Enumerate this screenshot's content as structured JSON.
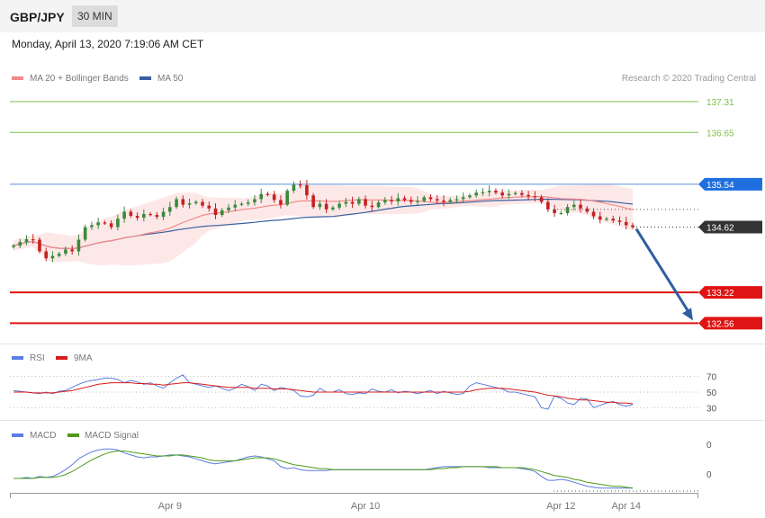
{
  "header": {
    "pair": "GBP/JPY",
    "timeframe": "30 MIN",
    "datetime": "Monday, April 13, 2020 7:19:06 AM CET"
  },
  "colors": {
    "ma20": "#f28a8a",
    "ma50": "#3a5f9f",
    "band": "#fde4e4",
    "bull": "#3a8a3a",
    "bear": "#c62020",
    "target_green": "#7fbf4a",
    "resistance_blue": "#5b8ed6",
    "label_blue": "#1f6fe0",
    "support_red": "#e01414",
    "current_label": "#333333",
    "arrow": "#2f5fa0",
    "rsi": "#5a7de0",
    "rsi_ma": "#d81b1b",
    "macd": "#5a7de0",
    "macd_signal": "#4f9a1a"
  },
  "chart_data": [
    {
      "type": "candlestick",
      "panel": "price",
      "legend": [
        {
          "name": "MA 20 + Bollinger Bands",
          "color": "#f28a8a"
        },
        {
          "name": "MA 50",
          "color": "#3a5f9f"
        }
      ],
      "credit": "Research © 2020 Trading Central",
      "ylim": [
        132.2,
        137.6
      ],
      "levels": [
        {
          "value": 137.31,
          "label": "137.31",
          "kind": "target"
        },
        {
          "value": 136.65,
          "label": "136.65",
          "kind": "target"
        },
        {
          "value": 135.54,
          "label": "135.54",
          "kind": "resistance"
        },
        {
          "value": 134.62,
          "label": "134.62",
          "kind": "current"
        },
        {
          "value": 133.22,
          "label": "133.22",
          "kind": "support"
        },
        {
          "value": 132.56,
          "label": "132.56",
          "kind": "support"
        }
      ],
      "forecast_arrow": {
        "from": 134.62,
        "to": 132.56
      },
      "xticks": [
        {
          "label": "Apr 9",
          "index": 24
        },
        {
          "label": "Apr 10",
          "index": 54
        },
        {
          "label": "Apr 12",
          "index": 84
        },
        {
          "label": "Apr 14",
          "index": 94
        }
      ],
      "closes": [
        134.22,
        134.3,
        134.36,
        134.35,
        134.1,
        133.95,
        134.0,
        134.05,
        134.14,
        134.1,
        134.35,
        134.62,
        134.66,
        134.72,
        134.7,
        134.62,
        134.8,
        134.95,
        134.86,
        134.82,
        134.9,
        134.88,
        134.84,
        134.95,
        135.05,
        135.22,
        135.1,
        135.13,
        135.16,
        135.08,
        135.02,
        134.88,
        134.98,
        135.04,
        135.1,
        135.12,
        135.15,
        135.22,
        135.33,
        135.32,
        135.2,
        135.1,
        135.4,
        135.53,
        135.52,
        135.3,
        135.05,
        135.12,
        135.0,
        135.04,
        135.12,
        135.16,
        135.12,
        135.22,
        135.08,
        135.05,
        135.15,
        135.2,
        135.17,
        135.24,
        135.2,
        135.16,
        135.18,
        135.26,
        135.22,
        135.19,
        135.16,
        135.2,
        135.22,
        135.26,
        135.3,
        135.36,
        135.37,
        135.4,
        135.36,
        135.3,
        135.33,
        135.35,
        135.31,
        135.28,
        135.26,
        135.16,
        135.0,
        134.92,
        134.92,
        135.05,
        135.1,
        135.02,
        134.95,
        134.85,
        134.78,
        134.8,
        134.76,
        134.73,
        134.66,
        134.62
      ]
    },
    {
      "type": "line",
      "panel": "rsi",
      "legend": [
        {
          "name": "RSI",
          "color": "#5a7de0"
        },
        {
          "name": "9MA",
          "color": "#d81b1b"
        }
      ],
      "levels": [
        70,
        50,
        30
      ],
      "level_labels": [
        "70",
        "50",
        "30"
      ],
      "ylim": [
        20,
        80
      ],
      "series": [
        {
          "name": "RSI",
          "values": [
            52,
            51,
            50,
            49,
            48,
            50,
            48,
            51,
            52,
            56,
            60,
            63,
            65,
            66,
            68,
            68,
            66,
            62,
            65,
            63,
            60,
            62,
            58,
            55,
            62,
            68,
            72,
            62,
            60,
            58,
            56,
            58,
            55,
            52,
            55,
            60,
            57,
            52,
            60,
            58,
            52,
            56,
            54,
            52,
            45,
            44,
            46,
            55,
            50,
            50,
            53,
            48,
            47,
            49,
            48,
            54,
            51,
            50,
            53,
            49,
            51,
            50,
            48,
            50,
            52,
            48,
            51,
            49,
            47,
            48,
            58,
            62,
            60,
            58,
            56,
            54,
            50,
            50,
            48,
            46,
            44,
            30,
            28,
            45,
            42,
            36,
            34,
            42,
            41,
            30,
            33,
            36,
            38,
            34,
            32,
            34
          ]
        },
        {
          "name": "9MA",
          "values": [
            50,
            50,
            50,
            49,
            49,
            49,
            49,
            50,
            51,
            52,
            54,
            56,
            58,
            60,
            61,
            62,
            62,
            62,
            62,
            61,
            61,
            60,
            60,
            59,
            60,
            61,
            62,
            62,
            61,
            60,
            59,
            58,
            57,
            56,
            56,
            56,
            56,
            55,
            55,
            55,
            54,
            54,
            54,
            53,
            52,
            51,
            50,
            50,
            50,
            50,
            50,
            50,
            50,
            50,
            50,
            50,
            50,
            50,
            50,
            50,
            50,
            50,
            50,
            50,
            50,
            50,
            50,
            50,
            50,
            50,
            51,
            53,
            54,
            55,
            55,
            55,
            54,
            53,
            52,
            51,
            50,
            48,
            46,
            45,
            44,
            42,
            41,
            40,
            40,
            39,
            38,
            37,
            37,
            36,
            36,
            35
          ]
        }
      ]
    },
    {
      "type": "line",
      "panel": "macd",
      "legend": [
        {
          "name": "MACD",
          "color": "#5a7de0"
        },
        {
          "name": "MACD Signal",
          "color": "#4f9a1a"
        }
      ],
      "level_labels": [
        "0",
        "0"
      ],
      "series": [
        {
          "name": "MACD",
          "values": [
            -0.02,
            -0.02,
            -0.01,
            -0.02,
            0.0,
            -0.01,
            0.0,
            0.03,
            0.07,
            0.12,
            0.18,
            0.22,
            0.25,
            0.27,
            0.28,
            0.28,
            0.27,
            0.24,
            0.22,
            0.2,
            0.19,
            0.2,
            0.2,
            0.21,
            0.22,
            0.22,
            0.21,
            0.2,
            0.18,
            0.16,
            0.14,
            0.13,
            0.14,
            0.15,
            0.16,
            0.18,
            0.2,
            0.21,
            0.2,
            0.18,
            0.16,
            0.1,
            0.08,
            0.09,
            0.07,
            0.06,
            0.06,
            0.06,
            0.06,
            0.07,
            0.07,
            0.07,
            0.07,
            0.07,
            0.07,
            0.07,
            0.07,
            0.07,
            0.07,
            0.07,
            0.07,
            0.07,
            0.07,
            0.07,
            0.08,
            0.09,
            0.1,
            0.1,
            0.1,
            0.1,
            0.1,
            0.1,
            0.1,
            0.09,
            0.09,
            0.09,
            0.09,
            0.09,
            0.08,
            0.07,
            0.05,
            0.0,
            -0.04,
            -0.04,
            -0.03,
            -0.04,
            -0.06,
            -0.08,
            -0.1,
            -0.11,
            -0.12,
            -0.12,
            -0.12,
            -0.12,
            -0.12,
            -0.12
          ]
        },
        {
          "name": "MACD Signal",
          "values": [
            -0.02,
            -0.02,
            -0.02,
            -0.02,
            -0.01,
            -0.01,
            -0.01,
            0.0,
            0.02,
            0.05,
            0.09,
            0.13,
            0.17,
            0.2,
            0.23,
            0.25,
            0.26,
            0.26,
            0.25,
            0.24,
            0.23,
            0.22,
            0.21,
            0.21,
            0.21,
            0.22,
            0.22,
            0.21,
            0.2,
            0.19,
            0.17,
            0.16,
            0.16,
            0.16,
            0.16,
            0.17,
            0.18,
            0.19,
            0.19,
            0.19,
            0.18,
            0.16,
            0.14,
            0.12,
            0.11,
            0.1,
            0.09,
            0.08,
            0.08,
            0.07,
            0.07,
            0.07,
            0.07,
            0.07,
            0.07,
            0.07,
            0.07,
            0.07,
            0.07,
            0.07,
            0.07,
            0.07,
            0.07,
            0.07,
            0.07,
            0.08,
            0.08,
            0.09,
            0.09,
            0.1,
            0.1,
            0.1,
            0.1,
            0.1,
            0.1,
            0.09,
            0.09,
            0.09,
            0.09,
            0.08,
            0.07,
            0.05,
            0.03,
            0.01,
            0.0,
            -0.01,
            -0.03,
            -0.04,
            -0.06,
            -0.07,
            -0.08,
            -0.09,
            -0.1,
            -0.1,
            -0.11,
            -0.12
          ]
        }
      ]
    }
  ]
}
